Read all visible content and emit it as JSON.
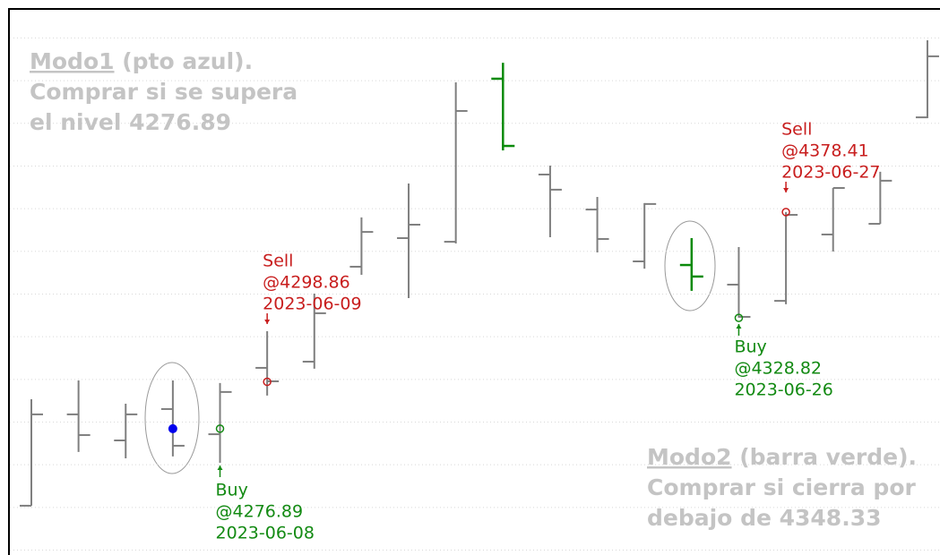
{
  "chart_data": {
    "type": "ohlc",
    "ylim": [
      4217.7,
      4473.6
    ],
    "yticks": [
      4220,
      4240,
      4260,
      4280,
      4300,
      4320,
      4340,
      4360,
      4380,
      4400,
      4420,
      4440,
      4460
    ],
    "grid": true,
    "color": "#7f7f7f",
    "highlight_color": "#0a8a0a",
    "highlight": [
      10,
      14
    ],
    "open": [
      4240.8,
      4283.6,
      4271.4,
      4286.1,
      4274.3,
      4305.4,
      4308.3,
      4352.8,
      4366.2,
      4364.5,
      4440.9,
      4396.0,
      4379.6,
      4355.3,
      4353.6,
      4344.4,
      4336.8,
      4367.9,
      4372.9,
      4422.8
    ],
    "high": [
      4290.7,
      4299.5,
      4288.6,
      4299.5,
      4298.3,
      4322.6,
      4340.2,
      4375.9,
      4391.8,
      4439.2,
      4448.4,
      4400.2,
      4385.5,
      4382.6,
      4366.2,
      4362.0,
      4378.4,
      4389.7,
      4397.3,
      4458.9
    ],
    "low": [
      4240.8,
      4266.0,
      4263.0,
      4263.9,
      4260.9,
      4292.4,
      4305.0,
      4349.0,
      4338.1,
      4363.7,
      4407.3,
      4366.6,
      4359.5,
      4351.9,
      4341.5,
      4328.9,
      4335.2,
      4359.9,
      4372.9,
      4422.4
    ],
    "close": [
      4283.6,
      4273.9,
      4283.6,
      4268.9,
      4294.1,
      4299.1,
      4331.0,
      4369.1,
      4372.5,
      4425.8,
      4409.4,
      4388.9,
      4365.8,
      4382.2,
      4348.2,
      4329.3,
      4377.1,
      4389.7,
      4393.1,
      4451.4
    ],
    "signals": [
      {
        "bar": 3,
        "price": 4276.89,
        "kind": "dot",
        "color": "#0000ee"
      },
      {
        "bar": 4,
        "price": 4276.89,
        "kind": "buy",
        "color": "#138a13",
        "lines": [
          "Buy",
          "@4276.89",
          "2023-06-08"
        ]
      },
      {
        "bar": 5,
        "price": 4298.86,
        "kind": "sell",
        "color": "#c81e1e",
        "lines": [
          "Sell",
          "@4298.86",
          "2023-06-09"
        ]
      },
      {
        "bar": 15,
        "price": 4328.82,
        "kind": "buy",
        "color": "#138a13",
        "lines": [
          "Buy",
          "@4328.82",
          "2023-06-26"
        ]
      },
      {
        "bar": 16,
        "price": 4378.41,
        "kind": "sell",
        "color": "#c81e1e",
        "lines": [
          "Sell",
          "@4378.41",
          "2023-06-27"
        ]
      }
    ],
    "notes": [
      {
        "title": "Modo1",
        "title_rest": " (pto azul).",
        "lines": [
          "Comprar si se supera",
          "el nivel 4276.89"
        ]
      },
      {
        "title": "Modo2",
        "title_rest": " (barra verde).",
        "lines": [
          "Comprar si cierra por",
          "debajo de 4348.33"
        ]
      }
    ]
  }
}
